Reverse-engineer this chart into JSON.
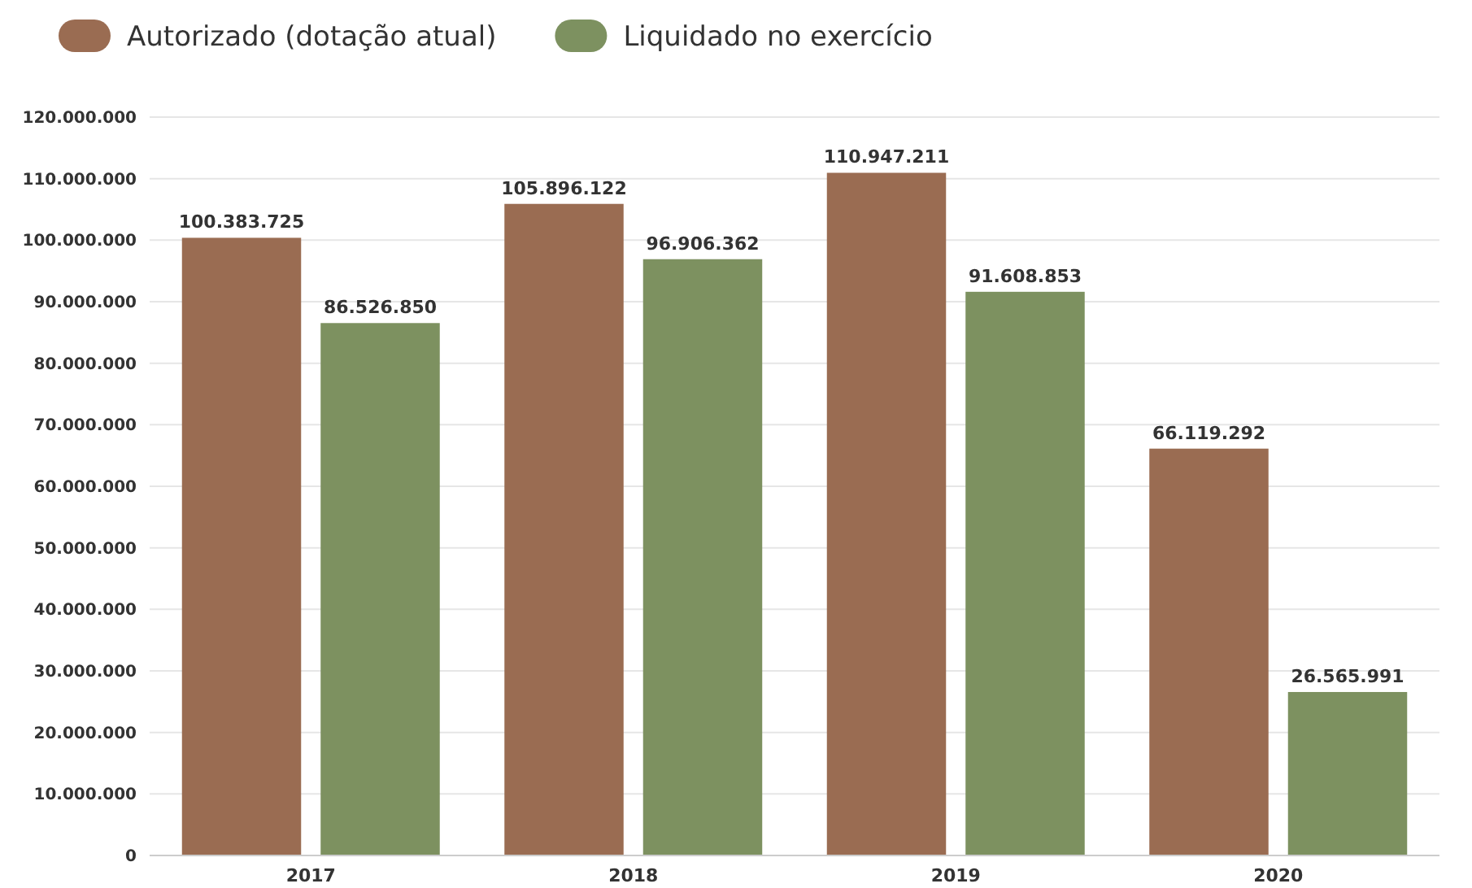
{
  "chart_data": {
    "type": "bar",
    "categories": [
      "2017",
      "2018",
      "2019",
      "2020"
    ],
    "series": [
      {
        "name": "Autorizado (dotação atual)",
        "color": "#9a6c52",
        "values": [
          100383725,
          105896122,
          110947211,
          66119292
        ],
        "value_labels": [
          "100.383.725",
          "105.896.122",
          "110.947.211",
          "66.119.292"
        ]
      },
      {
        "name": "Liquidado no exercício",
        "color": "#7d9160",
        "values": [
          86526850,
          96906362,
          91608853,
          26565991
        ],
        "value_labels": [
          "86.526.850",
          "96.906.362",
          "91.608.853",
          "26.565.991"
        ]
      }
    ],
    "ylim": [
      0,
      120000000
    ],
    "yticks": [
      0,
      {
        "value": 10000000,
        "label": "10.000.000"
      },
      {
        "value": 20000000,
        "label": "20.000.000"
      },
      {
        "value": 30000000,
        "label": "30.000.000"
      },
      {
        "value": 40000000,
        "label": "40.000.000"
      },
      {
        "value": 50000000,
        "label": "50.000.000"
      },
      {
        "value": 60000000,
        "label": "60.000.000"
      },
      {
        "value": 70000000,
        "label": "70.000.000"
      },
      {
        "value": 80000000,
        "label": "80.000.000"
      },
      {
        "value": 90000000,
        "label": "90.000.000"
      },
      {
        "value": 100000000,
        "label": "100.000.000"
      },
      {
        "value": 110000000,
        "label": "110.000.000"
      },
      {
        "value": 120000000,
        "label": "120.000.000"
      }
    ],
    "grid": "y",
    "legend": "top left"
  }
}
